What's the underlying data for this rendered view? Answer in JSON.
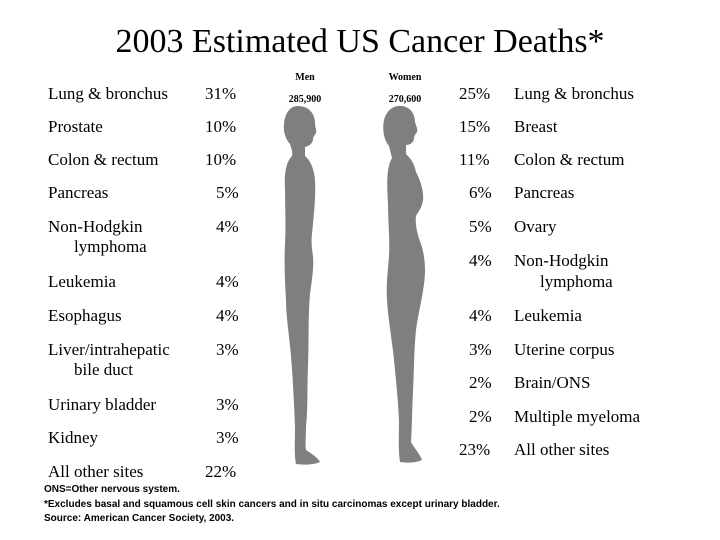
{
  "title": "2003 Estimated US Cancer Deaths*",
  "men": {
    "header": "Men",
    "total": "285,900",
    "rows": [
      {
        "label": "Lung & bronchus",
        "pct": "31%"
      },
      {
        "label": "Prostate",
        "pct": "10%"
      },
      {
        "label": "Colon & rectum",
        "pct": "10%"
      },
      {
        "label": "Pancreas",
        "pct": "5%"
      },
      {
        "label": "Non-Hodgkin",
        "label2": "lymphoma",
        "pct": "4%"
      },
      {
        "label": "Leukemia",
        "pct": "4%"
      },
      {
        "label": "Esophagus",
        "pct": "4%"
      },
      {
        "label": "Liver/intrahepatic",
        "label2": "bile duct",
        "pct": "3%"
      },
      {
        "label": "Urinary bladder",
        "pct": "3%"
      },
      {
        "label": "Kidney",
        "pct": "3%"
      },
      {
        "label": "All other sites",
        "pct": "22%"
      }
    ]
  },
  "women": {
    "header": "Women",
    "total": "270,600",
    "rows": [
      {
        "pct": "25%",
        "label": "Lung & bronchus"
      },
      {
        "pct": "15%",
        "label": "Breast"
      },
      {
        "pct": "11%",
        "label": "Colon & rectum"
      },
      {
        "pct": "6%",
        "label": "Pancreas"
      },
      {
        "pct": "5%",
        "label": "Ovary"
      },
      {
        "pct": "4%",
        "label": "Non-Hodgkin",
        "label2": "lymphoma"
      },
      {
        "pct": "4%",
        "label": "Leukemia"
      },
      {
        "pct": "3%",
        "label": "Uterine corpus"
      },
      {
        "pct": "2%",
        "label": "Brain/ONS"
      },
      {
        "pct": "2%",
        "label": "Multiple myeloma"
      },
      {
        "pct": "23%",
        "label": "All other sites"
      }
    ]
  },
  "footnotes": {
    "ons": "ONS=Other nervous system.",
    "excludes": "*Excludes basal and squamous cell skin cancers and in situ carcinomas except urinary bladder.",
    "source": "Source: American Cancer Society, 2003."
  },
  "colors": {
    "silhouette": "#7f7f7f"
  }
}
